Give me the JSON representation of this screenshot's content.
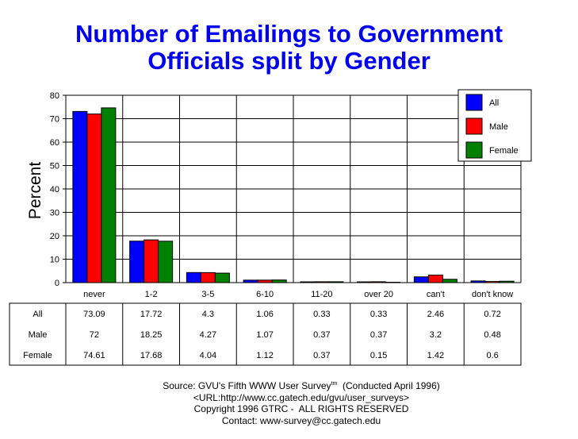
{
  "chart_data": {
    "type": "bar",
    "title": [
      "Number of Emailings to Government",
      "Officials split by Gender"
    ],
    "ylabel": "Percent",
    "xlabel": "",
    "ylim": [
      0,
      80
    ],
    "yticks": [
      0,
      10,
      20,
      30,
      40,
      50,
      60,
      70,
      80
    ],
    "grid": true,
    "legend_position": "top-right",
    "categories": [
      "never",
      "1-2",
      "3-5",
      "6-10",
      "11-20",
      "over 20",
      "can't",
      "don't know"
    ],
    "series": [
      {
        "name": "All",
        "color": "#0000ff",
        "values": [
          73.09,
          17.72,
          4.3,
          1.06,
          0.33,
          0.33,
          2.46,
          0.72
        ]
      },
      {
        "name": "Male",
        "color": "#ff0000",
        "values": [
          72,
          18.25,
          4.27,
          1.07,
          0.37,
          0.37,
          3.2,
          0.48
        ]
      },
      {
        "name": "Female",
        "color": "#008000",
        "values": [
          74.61,
          17.68,
          4.04,
          1.12,
          0.37,
          0.15,
          1.42,
          0.6
        ]
      }
    ]
  },
  "source": {
    "line1": "Source: GVU's Fifth WWW User Survey",
    "line1_sup": "tm",
    "line1_tail": "  (Conducted April 1996)",
    "line2": "<URL:http://www.cc.gatech.edu/gvu/user_surveys>",
    "line3": "Copyright 1996 GTRC -  ALL RIGHTS RESERVED",
    "line4": "Contact: www-survey@cc.gatech.edu"
  }
}
